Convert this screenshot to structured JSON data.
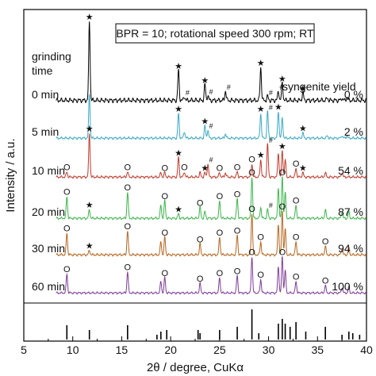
{
  "chart_data": {
    "type": "line",
    "title": "",
    "xlabel": "2θ / degree, CuKα",
    "ylabel": "Intensity / a.u.",
    "xlim": [
      5,
      40
    ],
    "x_ticks": [
      5,
      10,
      15,
      20,
      25,
      30,
      35,
      40
    ],
    "grid": false,
    "annotation_box": "BPR = 10; rotational speed 300 rpm; RT",
    "left_header": [
      "grinding",
      "time"
    ],
    "right_header": "syngenite yield",
    "marker_legend": {
      "star": "★",
      "hash": "#",
      "circle": "O"
    },
    "series": [
      {
        "name": "0 min",
        "yield": "0 %",
        "color": "#000000",
        "peaks": [
          [
            11.7,
            1.0
          ],
          [
            20.8,
            0.38
          ],
          [
            21.4,
            0.05
          ],
          [
            23.5,
            0.2
          ],
          [
            23.8,
            0.06
          ],
          [
            25.6,
            0.12
          ],
          [
            29.2,
            0.42
          ],
          [
            29.9,
            0.05
          ],
          [
            31.0,
            0.12
          ],
          [
            31.4,
            0.22
          ],
          [
            33.5,
            0.1
          ],
          [
            36.0,
            0.03
          ],
          [
            37.5,
            0.03
          ],
          [
            38.0,
            0.04
          ]
        ],
        "markers": [
          {
            "x": 11.7,
            "sym": "star"
          },
          {
            "x": 20.8,
            "sym": "star"
          },
          {
            "x": 21.4,
            "sym": "hash"
          },
          {
            "x": 23.5,
            "sym": "star"
          },
          {
            "x": 23.8,
            "sym": "hash"
          },
          {
            "x": 25.6,
            "sym": "hash"
          },
          {
            "x": 29.2,
            "sym": "star"
          },
          {
            "x": 29.9,
            "sym": "hash"
          },
          {
            "x": 31.0,
            "sym": "hash"
          },
          {
            "x": 31.4,
            "sym": "star"
          },
          {
            "x": 33.5,
            "sym": "star"
          }
        ]
      },
      {
        "name": "5 min",
        "yield": "2 %",
        "color": "#38a8c6",
        "peaks": [
          [
            11.7,
            1.0
          ],
          [
            20.8,
            0.55
          ],
          [
            21.4,
            0.15
          ],
          [
            23.5,
            0.28
          ],
          [
            23.8,
            0.18
          ],
          [
            25.6,
            0.1
          ],
          [
            29.2,
            0.55
          ],
          [
            29.9,
            0.6
          ],
          [
            31.0,
            0.6
          ],
          [
            31.4,
            0.45
          ],
          [
            33.5,
            0.12
          ],
          [
            36.0,
            0.06
          ],
          [
            37.5,
            0.06
          ],
          [
            38.0,
            0.05
          ]
        ],
        "markers": [
          {
            "x": 20.8,
            "sym": "star"
          },
          {
            "x": 23.5,
            "sym": "star"
          },
          {
            "x": 23.8,
            "sym": "hash"
          },
          {
            "x": 29.2,
            "sym": "star"
          },
          {
            "x": 29.9,
            "sym": "hash"
          },
          {
            "x": 31.0,
            "sym": "star"
          },
          {
            "x": 33.5,
            "sym": "star"
          }
        ]
      },
      {
        "name": "10 min",
        "yield": "54 %",
        "color": "#c0392b",
        "peaks": [
          [
            9.4,
            0.12
          ],
          [
            11.7,
            1.0
          ],
          [
            15.6,
            0.12
          ],
          [
            19.0,
            0.1
          ],
          [
            19.4,
            0.1
          ],
          [
            20.8,
            0.45
          ],
          [
            21.4,
            0.12
          ],
          [
            23.0,
            0.1
          ],
          [
            23.5,
            0.1
          ],
          [
            23.8,
            0.3
          ],
          [
            25.0,
            0.1
          ],
          [
            25.6,
            0.1
          ],
          [
            26.8,
            0.12
          ],
          [
            28.3,
            0.3
          ],
          [
            29.2,
            0.4
          ],
          [
            29.9,
            0.75
          ],
          [
            31.0,
            0.55
          ],
          [
            31.4,
            0.6
          ],
          [
            31.7,
            0.4
          ],
          [
            32.8,
            0.2
          ],
          [
            33.5,
            0.1
          ],
          [
            35.8,
            0.1
          ],
          [
            37.5,
            0.1
          ]
        ],
        "markers": [
          {
            "x": 9.4,
            "sym": "circle"
          },
          {
            "x": 11.7,
            "sym": "star"
          },
          {
            "x": 15.6,
            "sym": "circle"
          },
          {
            "x": 19.4,
            "sym": "circle"
          },
          {
            "x": 20.8,
            "sym": "star"
          },
          {
            "x": 21.4,
            "sym": "circle"
          },
          {
            "x": 23.5,
            "sym": "star"
          },
          {
            "x": 23.8,
            "sym": "hash"
          },
          {
            "x": 25.0,
            "sym": "circle"
          },
          {
            "x": 26.8,
            "sym": "circle"
          },
          {
            "x": 28.3,
            "sym": "circle"
          },
          {
            "x": 29.2,
            "sym": "star"
          },
          {
            "x": 29.9,
            "sym": "hash"
          },
          {
            "x": 31.4,
            "sym": "star"
          },
          {
            "x": 32.8,
            "sym": "circle"
          },
          {
            "x": 33.5,
            "sym": "star"
          }
        ]
      },
      {
        "name": "20 min",
        "yield": "87 %",
        "color": "#3cb54a",
        "peaks": [
          [
            9.4,
            0.5
          ],
          [
            11.7,
            0.2
          ],
          [
            15.6,
            0.6
          ],
          [
            19.0,
            0.3
          ],
          [
            19.4,
            0.4
          ],
          [
            20.8,
            0.1
          ],
          [
            23.0,
            0.25
          ],
          [
            23.5,
            0.15
          ],
          [
            25.0,
            0.4
          ],
          [
            26.8,
            0.45
          ],
          [
            28.3,
            0.95
          ],
          [
            29.2,
            0.25
          ],
          [
            29.9,
            0.2
          ],
          [
            31.0,
            0.7
          ],
          [
            31.4,
            0.95
          ],
          [
            31.7,
            0.6
          ],
          [
            32.8,
            0.3
          ],
          [
            35.8,
            0.2
          ],
          [
            37.5,
            0.15
          ],
          [
            38.2,
            0.15
          ]
        ],
        "markers": [
          {
            "x": 9.4,
            "sym": "circle"
          },
          {
            "x": 11.7,
            "sym": "star"
          },
          {
            "x": 15.6,
            "sym": "circle"
          },
          {
            "x": 19.4,
            "sym": "circle"
          },
          {
            "x": 20.8,
            "sym": "star"
          },
          {
            "x": 23.0,
            "sym": "circle"
          },
          {
            "x": 25.0,
            "sym": "circle"
          },
          {
            "x": 26.8,
            "sym": "circle"
          },
          {
            "x": 28.3,
            "sym": "circle"
          },
          {
            "x": 29.9,
            "sym": "hash"
          },
          {
            "x": 31.4,
            "sym": "circle"
          },
          {
            "x": 32.8,
            "sym": "circle"
          }
        ]
      },
      {
        "name": "30 min",
        "yield": "94 %",
        "color": "#b5651d",
        "peaks": [
          [
            9.4,
            0.5
          ],
          [
            11.7,
            0.1
          ],
          [
            15.6,
            0.55
          ],
          [
            19.0,
            0.3
          ],
          [
            19.4,
            0.4
          ],
          [
            23.0,
            0.25
          ],
          [
            25.0,
            0.4
          ],
          [
            26.8,
            0.45
          ],
          [
            28.3,
            0.95
          ],
          [
            29.2,
            0.3
          ],
          [
            31.0,
            0.7
          ],
          [
            31.4,
            1.0
          ],
          [
            31.7,
            0.6
          ],
          [
            32.8,
            0.3
          ],
          [
            35.8,
            0.2
          ],
          [
            37.5,
            0.15
          ],
          [
            38.2,
            0.15
          ]
        ],
        "markers": [
          {
            "x": 9.4,
            "sym": "circle"
          },
          {
            "x": 11.7,
            "sym": "star"
          },
          {
            "x": 15.6,
            "sym": "circle"
          },
          {
            "x": 19.4,
            "sym": "circle"
          },
          {
            "x": 23.0,
            "sym": "circle"
          },
          {
            "x": 25.0,
            "sym": "circle"
          },
          {
            "x": 26.8,
            "sym": "circle"
          },
          {
            "x": 28.3,
            "sym": "circle"
          },
          {
            "x": 29.2,
            "sym": "circle"
          },
          {
            "x": 31.4,
            "sym": "circle"
          },
          {
            "x": 32.8,
            "sym": "circle"
          },
          {
            "x": 35.8,
            "sym": "circle"
          }
        ]
      },
      {
        "name": "60 min",
        "yield": "100 %",
        "color": "#7d3c98",
        "peaks": [
          [
            9.4,
            0.5
          ],
          [
            15.6,
            0.55
          ],
          [
            19.0,
            0.3
          ],
          [
            19.4,
            0.4
          ],
          [
            23.0,
            0.25
          ],
          [
            25.0,
            0.4
          ],
          [
            26.8,
            0.45
          ],
          [
            28.3,
            0.95
          ],
          [
            29.2,
            0.35
          ],
          [
            31.0,
            0.7
          ],
          [
            31.4,
            0.95
          ],
          [
            31.7,
            0.6
          ],
          [
            32.8,
            0.3
          ],
          [
            35.8,
            0.2
          ],
          [
            37.5,
            0.15
          ],
          [
            38.2,
            0.15
          ]
        ],
        "markers": [
          {
            "x": 9.4,
            "sym": "circle"
          },
          {
            "x": 15.6,
            "sym": "circle"
          },
          {
            "x": 19.4,
            "sym": "circle"
          },
          {
            "x": 23.0,
            "sym": "circle"
          },
          {
            "x": 25.0,
            "sym": "circle"
          },
          {
            "x": 26.8,
            "sym": "circle"
          },
          {
            "x": 28.3,
            "sym": "circle"
          },
          {
            "x": 29.2,
            "sym": "circle"
          },
          {
            "x": 31.4,
            "sym": "circle"
          },
          {
            "x": 32.8,
            "sym": "circle"
          },
          {
            "x": 35.8,
            "sym": "circle"
          }
        ]
      }
    ],
    "reference_pattern": {
      "color": "#000000",
      "peaks": [
        [
          9.4,
          0.45
        ],
        [
          11.7,
          0.3
        ],
        [
          15.6,
          0.45
        ],
        [
          18.6,
          0.15
        ],
        [
          19.0,
          0.25
        ],
        [
          19.6,
          0.3
        ],
        [
          22.8,
          0.3
        ],
        [
          23.0,
          0.2
        ],
        [
          25.0,
          0.3
        ],
        [
          26.8,
          0.4
        ],
        [
          28.3,
          0.95
        ],
        [
          29.0,
          0.2
        ],
        [
          31.0,
          0.5
        ],
        [
          31.4,
          0.65
        ],
        [
          31.7,
          0.5
        ],
        [
          32.2,
          0.4
        ],
        [
          32.8,
          0.55
        ],
        [
          33.8,
          0.25
        ],
        [
          35.8,
          0.4
        ],
        [
          37.5,
          0.15
        ],
        [
          38.2,
          0.25
        ],
        [
          38.6,
          0.2
        ],
        [
          39.3,
          0.15
        ]
      ]
    }
  }
}
